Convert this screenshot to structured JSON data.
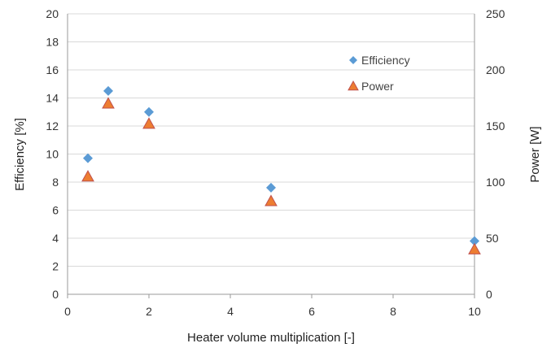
{
  "chart_data": {
    "type": "scatter",
    "title": "",
    "xlabel": "Heater volume multiplication [-]",
    "ylabel": "Efficiency [%]",
    "y2label": "Power [W]",
    "xlim": [
      0,
      10
    ],
    "ylim": [
      0,
      20
    ],
    "y2lim": [
      0,
      250
    ],
    "xticks": [
      0,
      2,
      4,
      6,
      8,
      10
    ],
    "yticks": [
      0,
      2,
      4,
      6,
      8,
      10,
      12,
      14,
      16,
      18,
      20
    ],
    "y2ticks": [
      0,
      50,
      100,
      150,
      200,
      250
    ],
    "grid": "horizontal",
    "legend_position": "top-right",
    "series": [
      {
        "name": "Efficiency",
        "axis": "left",
        "marker": "diamond",
        "color": "#5b9bd5",
        "x": [
          0.5,
          1,
          2,
          5,
          10
        ],
        "y": [
          9.7,
          14.5,
          13.0,
          7.6,
          3.8
        ]
      },
      {
        "name": "Power",
        "axis": "right",
        "marker": "triangle",
        "color": "#ed7d31",
        "x": [
          0.5,
          1,
          2,
          5,
          10
        ],
        "y": [
          105,
          170,
          152,
          83,
          40
        ]
      }
    ]
  }
}
